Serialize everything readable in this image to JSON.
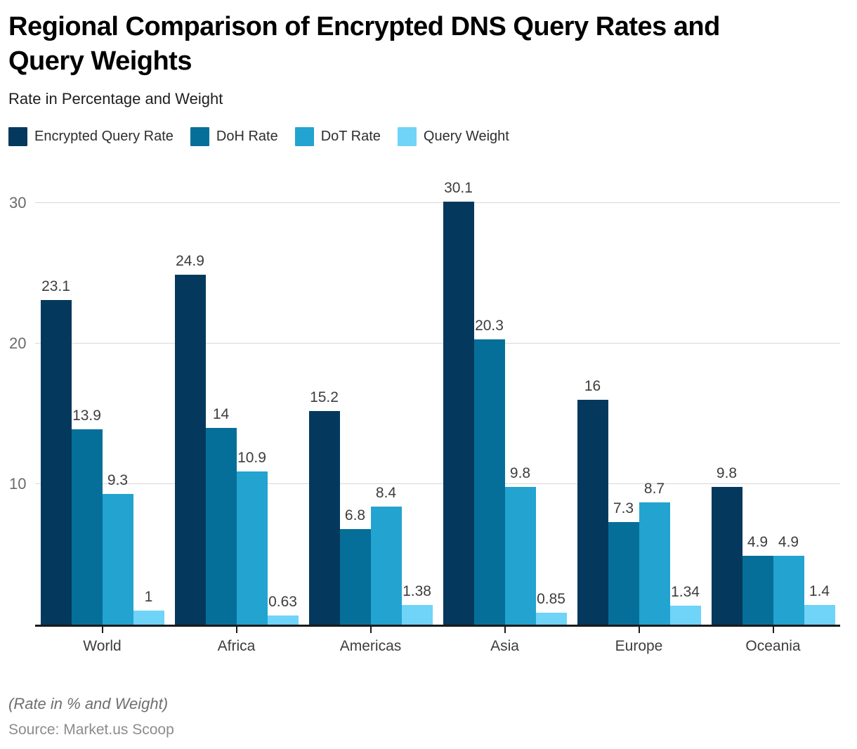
{
  "header": {
    "title": "Regional Comparison of Encrypted DNS Query Rates and\nQuery Weights",
    "subtitle": "Rate in Percentage and Weight"
  },
  "footer": {
    "note": "(Rate in % and Weight)",
    "source": "Source: Market.us Scoop"
  },
  "chart_data": {
    "type": "bar",
    "title": "Regional Comparison of Encrypted DNS Query Rates and Query Weights",
    "subtitle": "Rate in Percentage and Weight",
    "categories": [
      "World",
      "Africa",
      "Americas",
      "Asia",
      "Europe",
      "Oceania"
    ],
    "series": [
      {
        "name": "Encrypted Query Rate",
        "color": "#04395d",
        "values": [
          23.1,
          24.9,
          15.2,
          30.1,
          16,
          9.8
        ]
      },
      {
        "name": "DoH Rate",
        "color": "#066f99",
        "values": [
          13.9,
          14,
          6.8,
          20.3,
          7.3,
          4.9
        ]
      },
      {
        "name": "DoT Rate",
        "color": "#23a3cf",
        "values": [
          9.3,
          10.9,
          8.4,
          9.8,
          8.7,
          4.9
        ]
      },
      {
        "name": "Query Weight",
        "color": "#70d3f8",
        "values": [
          1,
          0.63,
          1.38,
          0.85,
          1.34,
          1.4
        ]
      }
    ],
    "yticks": [
      10,
      20,
      30
    ],
    "ylim": [
      0,
      33
    ],
    "xlabel": "",
    "ylabel": "",
    "grid": "horizontal",
    "legend_position": "top",
    "gridline_color": "#d8d8d8",
    "axis_line_color": "#1b1b1b"
  }
}
